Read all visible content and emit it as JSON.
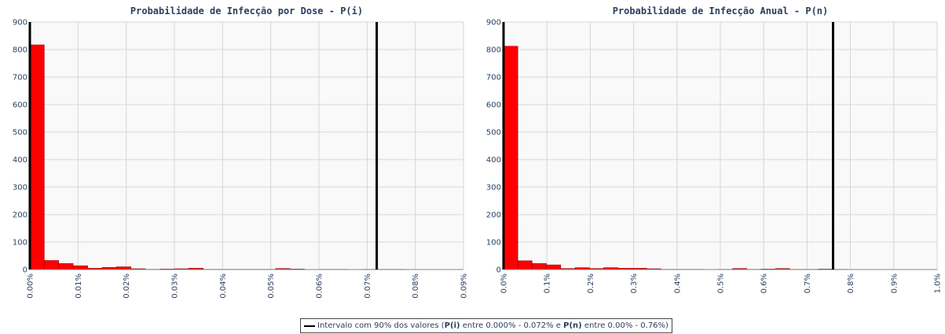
{
  "colors": {
    "bar": "#ff0000",
    "bar_edge": "#8b0000",
    "line": "#000000",
    "plot_bg": "#f9f9f9",
    "grid": "#d6d6d6",
    "text": "#2a3f5f"
  },
  "chart_data": [
    {
      "type": "bar",
      "title": "Probabilidade de Infecção por Dose - P(i)",
      "xlim": [
        0,
        0.09
      ],
      "ylim": [
        0,
        900
      ],
      "xticks": [
        0,
        0.01,
        0.02,
        0.03,
        0.04,
        0.05,
        0.06,
        0.07,
        0.08,
        0.09
      ],
      "xtick_labels": [
        "0.00%",
        "0.01%",
        "0.02%",
        "0.03%",
        "0.04%",
        "0.05%",
        "0.06%",
        "0.07%",
        "0.08%",
        "0.09%"
      ],
      "yticks": [
        0,
        100,
        200,
        300,
        400,
        500,
        600,
        700,
        800,
        900
      ],
      "ytick_labels": [
        "0",
        "100",
        "200",
        "300",
        "400",
        "500",
        "600",
        "700",
        "800",
        "900"
      ],
      "bin_width": 0.003,
      "bin_starts": [
        0,
        0.003,
        0.006,
        0.009,
        0.012,
        0.015,
        0.018,
        0.021,
        0.024,
        0.027,
        0.03,
        0.033,
        0.036,
        0.039,
        0.042,
        0.045,
        0.048,
        0.051,
        0.054,
        0.057,
        0.06,
        0.063,
        0.066,
        0.069,
        0.072,
        0.075
      ],
      "values": [
        817,
        33,
        22,
        14,
        5,
        8,
        10,
        3,
        1,
        2,
        3,
        5,
        1,
        1,
        1,
        1,
        1,
        4,
        2,
        0,
        1,
        1,
        0,
        1,
        1,
        1
      ],
      "reference_line_x": 0.072,
      "grid": true
    },
    {
      "type": "bar",
      "title": "Probabilidade de Infecção Anual - P(n)",
      "xlim": [
        0,
        1.0
      ],
      "ylim": [
        0,
        900
      ],
      "xticks": [
        0,
        0.1,
        0.2,
        0.3,
        0.4,
        0.5,
        0.6,
        0.7,
        0.8,
        0.9,
        1.0
      ],
      "xtick_labels": [
        "0.0%",
        "0.1%",
        "0.2%",
        "0.3%",
        "0.4%",
        "0.5%",
        "0.6%",
        "0.7%",
        "0.8%",
        "0.9%",
        "1.0%"
      ],
      "yticks": [
        0,
        100,
        200,
        300,
        400,
        500,
        600,
        700,
        800,
        900
      ],
      "ytick_labels": [
        "0",
        "100",
        "200",
        "300",
        "400",
        "500",
        "600",
        "700",
        "800",
        "900"
      ],
      "bin_width": 0.033,
      "bin_starts": [
        0,
        0.033,
        0.066,
        0.099,
        0.132,
        0.165,
        0.198,
        0.231,
        0.264,
        0.297,
        0.33,
        0.363,
        0.396,
        0.429,
        0.462,
        0.495,
        0.528,
        0.561,
        0.594,
        0.627,
        0.66,
        0.693,
        0.726,
        0.759
      ],
      "values": [
        812,
        32,
        22,
        17,
        4,
        7,
        4,
        7,
        5,
        5,
        3,
        1,
        1,
        1,
        0,
        1,
        4,
        1,
        2,
        4,
        1,
        1,
        2,
        1
      ],
      "reference_line_x": 0.76,
      "grid": true
    }
  ],
  "legend": {
    "text_1": "Intervalo com 90% dos valores (",
    "bold_1": "P(i)",
    "text_2": " entre 0.000% - 0.072% e ",
    "bold_2": "P(n)",
    "text_3": " entre 0.00% - 0.76%)"
  }
}
